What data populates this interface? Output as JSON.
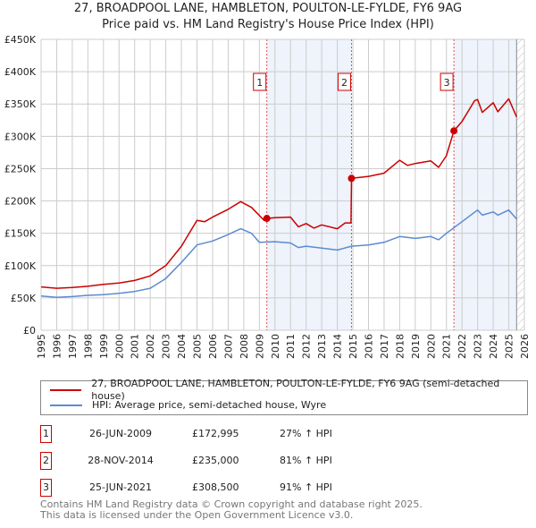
{
  "chart_data": {
    "type": "line",
    "title": "27, BROADPOOL LANE, HAMBLETON, POULTON-LE-FYLDE, FY6 9AG",
    "subtitle": "Price paid vs. HM Land Registry's House Price Index (HPI)",
    "xlim": [
      1995,
      2026
    ],
    "ylim": [
      0,
      450000
    ],
    "x_ticks": [
      "1995",
      "1996",
      "1997",
      "1998",
      "1999",
      "2000",
      "2001",
      "2002",
      "2003",
      "2004",
      "2005",
      "2006",
      "2007",
      "2008",
      "2009",
      "2010",
      "2011",
      "2012",
      "2013",
      "2014",
      "2015",
      "2016",
      "2017",
      "2018",
      "2019",
      "2020",
      "2021",
      "2022",
      "2023",
      "2024",
      "2025",
      "2026"
    ],
    "y_ticks": [
      {
        "v": 0,
        "label": "£0"
      },
      {
        "v": 50000,
        "label": "£50K"
      },
      {
        "v": 100000,
        "label": "£100K"
      },
      {
        "v": 150000,
        "label": "£150K"
      },
      {
        "v": 200000,
        "label": "£200K"
      },
      {
        "v": 250000,
        "label": "£250K"
      },
      {
        "v": 300000,
        "label": "£300K"
      },
      {
        "v": 350000,
        "label": "£350K"
      },
      {
        "v": 400000,
        "label": "£400K"
      },
      {
        "v": 450000,
        "label": "£450K"
      }
    ],
    "grid": true,
    "data_end": 2025.5,
    "series": [
      {
        "name": "27, BROADPOOL LANE, HAMBLETON, POULTON-LE-FYLDE, FY6 9AG (semi-detached house)",
        "color": "#cc0000",
        "x": [
          1995,
          1996,
          1997,
          1998,
          1999,
          2000,
          2001,
          2002,
          2003,
          2004,
          2005,
          2005.5,
          2006,
          2007,
          2007.8,
          2008.5,
          2009.3,
          2009.48,
          2010,
          2011,
          2011.5,
          2012,
          2012.5,
          2013,
          2014,
          2014.5,
          2014.88,
          2014.91,
          2016,
          2017,
          2018,
          2018.5,
          2019,
          2020,
          2020.5,
          2021,
          2021.48,
          2022,
          2022.8,
          2023,
          2023.3,
          2024,
          2024.3,
          2025,
          2025.5
        ],
        "y": [
          67000,
          65000,
          66000,
          68000,
          71000,
          73000,
          77000,
          84000,
          100000,
          130000,
          170000,
          168000,
          175000,
          187000,
          199000,
          190000,
          170000,
          172995,
          174000,
          175000,
          160000,
          165000,
          158000,
          163000,
          157000,
          166000,
          166000,
          235000,
          238000,
          243000,
          263000,
          255000,
          258000,
          262000,
          252000,
          270000,
          308500,
          323000,
          355000,
          357000,
          337000,
          352000,
          338000,
          358000,
          330000
        ]
      },
      {
        "name": "HPI: Average price, semi-detached house, Wyre",
        "color": "#5b8bd0",
        "x": [
          1995,
          1996,
          1997,
          1998,
          1999,
          2000,
          2001,
          2002,
          2003,
          2004,
          2005,
          2006,
          2007,
          2007.8,
          2008.5,
          2009,
          2010,
          2011,
          2011.5,
          2012,
          2013,
          2014,
          2014.9,
          2016,
          2017,
          2018,
          2019,
          2020,
          2020.5,
          2021,
          2022,
          2023,
          2023.3,
          2024,
          2024.3,
          2025,
          2025.5
        ],
        "y": [
          53000,
          51000,
          52000,
          54000,
          55000,
          57000,
          60000,
          65000,
          80000,
          105000,
          132000,
          138000,
          148000,
          157000,
          150000,
          136000,
          137000,
          135000,
          128000,
          130000,
          127000,
          124000,
          130000,
          132000,
          136000,
          145000,
          142000,
          145000,
          140000,
          150000,
          168000,
          186000,
          178000,
          183000,
          178000,
          186000,
          172000
        ]
      }
    ],
    "sales": [
      {
        "num": "1",
        "x": 2009.48,
        "y": 172995
      },
      {
        "num": "2",
        "x": 2014.91,
        "y": 235000
      },
      {
        "num": "3",
        "x": 2021.48,
        "y": 308500
      }
    ]
  },
  "transactions": [
    {
      "num": "1",
      "date": "26-JUN-2009",
      "price": "£172,995",
      "hpi": "27% ↑ HPI"
    },
    {
      "num": "2",
      "date": "28-NOV-2014",
      "price": "£235,000",
      "hpi": "81% ↑ HPI"
    },
    {
      "num": "3",
      "date": "25-JUN-2021",
      "price": "£308,500",
      "hpi": "91% ↑ HPI"
    }
  ],
  "footer": {
    "line1": "Contains HM Land Registry data © Crown copyright and database right 2025.",
    "line2": "This data is licensed under the Open Government Licence v3.0."
  }
}
